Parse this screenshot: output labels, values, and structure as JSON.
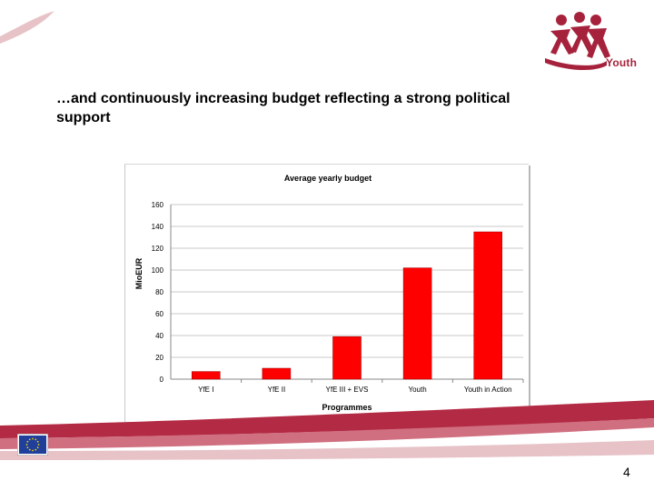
{
  "slide": {
    "title": "…and continuously increasing budget reflecting a strong political support",
    "page_number": "4",
    "logo_text": "Youth"
  },
  "colors": {
    "bar": "#ff0000",
    "brand": "#a6223c",
    "swoosh_light": "#e7c3c8"
  },
  "icons": {
    "logo": "youth-figures-icon",
    "flag": "eu-flag-icon"
  },
  "chart_data": {
    "type": "bar",
    "title": "Average yearly budget",
    "xlabel": "Programmes",
    "ylabel": "MioEUR",
    "categories": [
      "YfE I",
      "YfE II",
      "YfE III + EVS",
      "Youth",
      "Youth in Action"
    ],
    "values": [
      7,
      10,
      39,
      102,
      135
    ],
    "ylim": [
      0,
      160
    ],
    "yticks": [
      0,
      20,
      40,
      60,
      80,
      100,
      120,
      140,
      160
    ],
    "grid": true,
    "legend": "none"
  }
}
